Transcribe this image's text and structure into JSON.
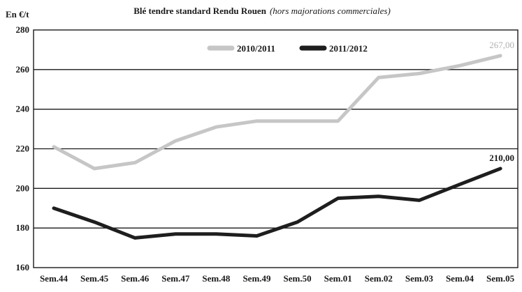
{
  "chart_data": {
    "type": "line",
    "title": "Blé tendre standard Rendu Rouen",
    "subtitle": "(hors majorations commerciales)",
    "ylabel": "En €/t",
    "xlabel": "",
    "categories": [
      "Sem.44",
      "Sem.45",
      "Sem.46",
      "Sem.47",
      "Sem.48",
      "Sem.49",
      "Sem.50",
      "Sem.01",
      "Sem.02",
      "Sem.03",
      "Sem.04",
      "Sem.05"
    ],
    "ylim": [
      160,
      280
    ],
    "yticks": [
      160,
      180,
      200,
      220,
      240,
      260,
      280
    ],
    "grid": true,
    "legend": "top-center",
    "series": [
      {
        "name": "2010/2011",
        "color": "#c6c6c6",
        "values": [
          221,
          210,
          213,
          224,
          231,
          234,
          234,
          234,
          256,
          258,
          262,
          267
        ],
        "end_label": "267,00"
      },
      {
        "name": "2011/2012",
        "color": "#1e1e1e",
        "values": [
          190,
          183,
          175,
          177,
          177,
          176,
          183,
          195,
          196,
          194,
          202,
          210
        ],
        "end_label": "210,00"
      }
    ]
  }
}
